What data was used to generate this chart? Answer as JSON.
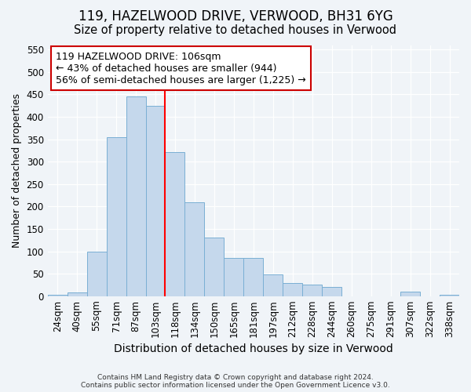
{
  "title1": "119, HAZELWOOD DRIVE, VERWOOD, BH31 6YG",
  "title2": "Size of property relative to detached houses in Verwood",
  "xlabel": "Distribution of detached houses by size in Verwood",
  "ylabel": "Number of detached properties",
  "categories": [
    "24sqm",
    "40sqm",
    "55sqm",
    "71sqm",
    "87sqm",
    "103sqm",
    "118sqm",
    "134sqm",
    "150sqm",
    "165sqm",
    "181sqm",
    "197sqm",
    "212sqm",
    "228sqm",
    "244sqm",
    "260sqm",
    "275sqm",
    "291sqm",
    "307sqm",
    "322sqm",
    "338sqm"
  ],
  "values": [
    3,
    8,
    100,
    355,
    445,
    425,
    322,
    210,
    130,
    85,
    85,
    48,
    30,
    25,
    20,
    0,
    0,
    0,
    10,
    0,
    3
  ],
  "bar_color": "#c5d8ec",
  "bar_edge_color": "#7aafd4",
  "annotation_line1": "119 HAZELWOOD DRIVE: 106sqm",
  "annotation_line2": "← 43% of detached houses are smaller (944)",
  "annotation_line3": "56% of semi-detached houses are larger (1,225) →",
  "annotation_box_color": "#cc0000",
  "red_line_x": 5.5,
  "ylim": [
    0,
    560
  ],
  "yticks": [
    0,
    50,
    100,
    150,
    200,
    250,
    300,
    350,
    400,
    450,
    500,
    550
  ],
  "footer1": "Contains HM Land Registry data © Crown copyright and database right 2024.",
  "footer2": "Contains public sector information licensed under the Open Government Licence v3.0.",
  "bg_color": "#f0f4f8",
  "plot_bg_color": "#f0f4f8",
  "grid_color": "#ffffff",
  "title1_fontsize": 12,
  "title2_fontsize": 10.5,
  "tick_fontsize": 8.5,
  "xlabel_fontsize": 10,
  "ylabel_fontsize": 9,
  "annotation_fontsize": 9
}
